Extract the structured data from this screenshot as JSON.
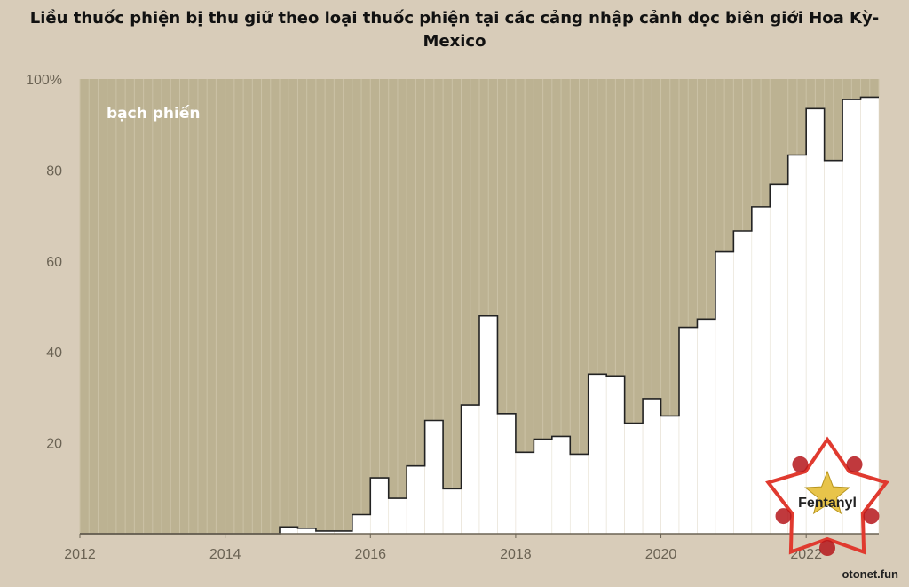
{
  "chart_data": {
    "type": "area",
    "title": "Liều thuốc phiện bị thu giữ theo loại thuốc phiện tại các cảng nhập cảnh dọc biên giới Hoa Kỳ-Mexico",
    "title_lines": [
      "Liều thuốc phiện bị thu giữ theo loại thuốc phiện tại các cảng nhập cảnh dọc biên giới Hoa Kỳ-",
      "Mexico"
    ],
    "xlabel": "",
    "ylabel": "",
    "x_ticks": [
      "2012",
      "2014",
      "2016",
      "2018",
      "2020",
      "2022"
    ],
    "y_ticks": [
      "20",
      "40",
      "60",
      "80",
      "100%"
    ],
    "ylim": [
      0,
      100
    ],
    "xlim": [
      2012,
      2023.0
    ],
    "grid": "vertical quarterly lines",
    "area_labels": {
      "top": "bạch phiến"
    },
    "colors": {
      "heroin_area": "#bcb292",
      "fentanyl_area": "#ffffff",
      "background": "#d8ccb9",
      "step_line": "#222222"
    },
    "series": [
      {
        "name": "bạch phiến",
        "x": [
          2012.0,
          2012.25,
          2012.5,
          2012.75,
          2013.0,
          2013.25,
          2013.5,
          2013.75,
          2014.0,
          2014.25,
          2014.5,
          2014.75,
          2015.0,
          2015.25,
          2015.5,
          2015.75,
          2016.0,
          2016.25,
          2016.5,
          2016.75,
          2017.0,
          2017.25,
          2017.5,
          2017.75,
          2018.0,
          2018.25,
          2018.5,
          2018.75,
          2019.0,
          2019.25,
          2019.5,
          2019.75,
          2020.0,
          2020.25,
          2020.5,
          2020.75,
          2021.0,
          2021.25,
          2021.5,
          2021.75,
          2022.0,
          2022.25,
          2022.5,
          2022.75
        ],
        "values": [
          100,
          100,
          100,
          100,
          100,
          100,
          100,
          100,
          100,
          100,
          100,
          98.5,
          98.8,
          99.4,
          99.4,
          95.8,
          87.7,
          92.2,
          85.1,
          75.1,
          90.1,
          71.7,
          52.1,
          73.6,
          82.1,
          79.2,
          78.6,
          82.5,
          64.9,
          65.3,
          75.7,
          70.3,
          74.1,
          54.6,
          52.8,
          38,
          33.4,
          28.1,
          23.1,
          16.7,
          6.5,
          17.9,
          4.5,
          4
        ]
      },
      {
        "name": "Fentanyl",
        "x": [
          2012.0,
          2012.25,
          2012.5,
          2012.75,
          2013.0,
          2013.25,
          2013.5,
          2013.75,
          2014.0,
          2014.25,
          2014.5,
          2014.75,
          2015.0,
          2015.25,
          2015.5,
          2015.75,
          2016.0,
          2016.25,
          2016.5,
          2016.75,
          2017.0,
          2017.25,
          2017.5,
          2017.75,
          2018.0,
          2018.25,
          2018.5,
          2018.75,
          2019.0,
          2019.25,
          2019.5,
          2019.75,
          2020.0,
          2020.25,
          2020.5,
          2020.75,
          2021.0,
          2021.25,
          2021.5,
          2021.75,
          2022.0,
          2022.25,
          2022.5,
          2022.75
        ],
        "values": [
          0,
          0,
          0,
          0,
          0,
          0,
          0,
          0,
          0,
          0,
          0,
          1.5,
          1.2,
          0.6,
          0.6,
          4.2,
          12.3,
          7.8,
          14.9,
          24.9,
          9.9,
          28.3,
          47.9,
          26.4,
          17.9,
          20.8,
          21.4,
          17.5,
          35.1,
          34.7,
          24.3,
          29.7,
          25.9,
          45.4,
          47.2,
          62,
          66.6,
          71.9,
          76.9,
          83.3,
          93.5,
          82.1,
          95.5,
          96
        ]
      }
    ]
  },
  "watermark": {
    "label": "Fentanyl",
    "site": "otonet.fun",
    "colors": {
      "red": "#e03a2f",
      "dark_red": "#b5161b",
      "gold": "#e8c44a"
    }
  }
}
